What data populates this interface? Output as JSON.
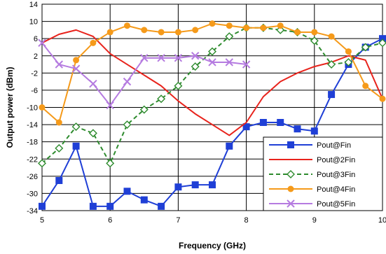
{
  "chart_data": {
    "type": "line",
    "xlabel": "Frequency (GHz)",
    "ylabel": "Output power (dBm)",
    "xlim": [
      5,
      10
    ],
    "ylim": [
      -34,
      14
    ],
    "x_ticks": [
      "5",
      "6",
      "7",
      "8",
      "9",
      "10"
    ],
    "y_ticks": [
      "-34",
      "-30",
      "-26",
      "-22",
      "-18",
      "-14",
      "-10",
      "-6",
      "-2",
      "2",
      "6",
      "10",
      "14"
    ],
    "grid": true,
    "legend_position": "bottom-right",
    "series": [
      {
        "name": "Pout@Fin",
        "color": "#1f3fd6",
        "marker": "square",
        "dash": "solid",
        "x": [
          5,
          5.25,
          5.5,
          5.75,
          6,
          6.25,
          6.5,
          6.75,
          7,
          7.25,
          7.5,
          7.75,
          8,
          8.25,
          8.5,
          8.75,
          9,
          9.25,
          9.5,
          9.75,
          10
        ],
        "y": [
          -33,
          -27,
          -19,
          -33,
          -33,
          -29.5,
          -31.5,
          -33,
          -28.5,
          -28,
          -28,
          -19,
          -14.5,
          -13.5,
          -13.5,
          -15,
          -15.5,
          -7,
          0,
          4,
          6
        ]
      },
      {
        "name": "Pout@2Fin",
        "color": "#e8231c",
        "marker": "none",
        "dash": "solid",
        "x": [
          5,
          5.25,
          5.5,
          5.75,
          6,
          6.25,
          6.5,
          6.75,
          7,
          7.25,
          7.5,
          7.75,
          8,
          8.25,
          8.5,
          8.75,
          9,
          9.25,
          9.5,
          9.75,
          10
        ],
        "y": [
          5,
          7,
          8,
          6.5,
          2.5,
          0,
          -2.5,
          -5,
          -8.5,
          -11.5,
          -14,
          -16.5,
          -13.5,
          -7.5,
          -4,
          -2,
          -0.5,
          0.5,
          2,
          1,
          -8
        ]
      },
      {
        "name": "Pout@3Fin",
        "color": "#2e8b2e",
        "marker": "diamond",
        "dash": "dashed",
        "x": [
          5,
          5.25,
          5.5,
          5.75,
          6,
          6.25,
          6.5,
          6.75,
          7,
          7.25,
          7.5,
          7.75,
          8,
          8.25,
          8.5,
          8.75,
          9,
          9.25,
          9.5,
          9.75,
          10
        ],
        "y": [
          -23,
          -19.5,
          -14.5,
          -16,
          -23,
          -14,
          -10.5,
          -8,
          -5,
          -0.5,
          3,
          6.5,
          8.5,
          8.5,
          8,
          7.5,
          5.5,
          0,
          0.5,
          4,
          5
        ]
      },
      {
        "name": "Pout@4Fin",
        "color": "#f59a1a",
        "marker": "circle",
        "dash": "solid",
        "x": [
          5,
          5.25,
          5.5,
          5.75,
          6,
          6.25,
          6.5,
          6.75,
          7,
          7.25,
          7.5,
          7.75,
          8,
          8.25,
          8.5,
          8.75,
          9,
          9.25,
          9.5,
          9.75,
          10
        ],
        "y": [
          -10,
          -13.5,
          1,
          5,
          7.5,
          9,
          8,
          7.5,
          7.5,
          8,
          9.5,
          9,
          8.5,
          8.5,
          9,
          7.5,
          7.5,
          6.5,
          3,
          -5,
          -8
        ]
      },
      {
        "name": "Pout@5Fin",
        "color": "#b57be0",
        "marker": "cross",
        "dash": "solid",
        "x": [
          5,
          5.25,
          5.5,
          5.75,
          6,
          6.25,
          6.5,
          6.75,
          7,
          7.25,
          7.5,
          7.75,
          8
        ],
        "y": [
          5,
          0,
          -1,
          -4.5,
          -9.5,
          -4,
          1.5,
          1.5,
          1.5,
          2,
          0.5,
          0.5,
          0
        ]
      }
    ]
  }
}
